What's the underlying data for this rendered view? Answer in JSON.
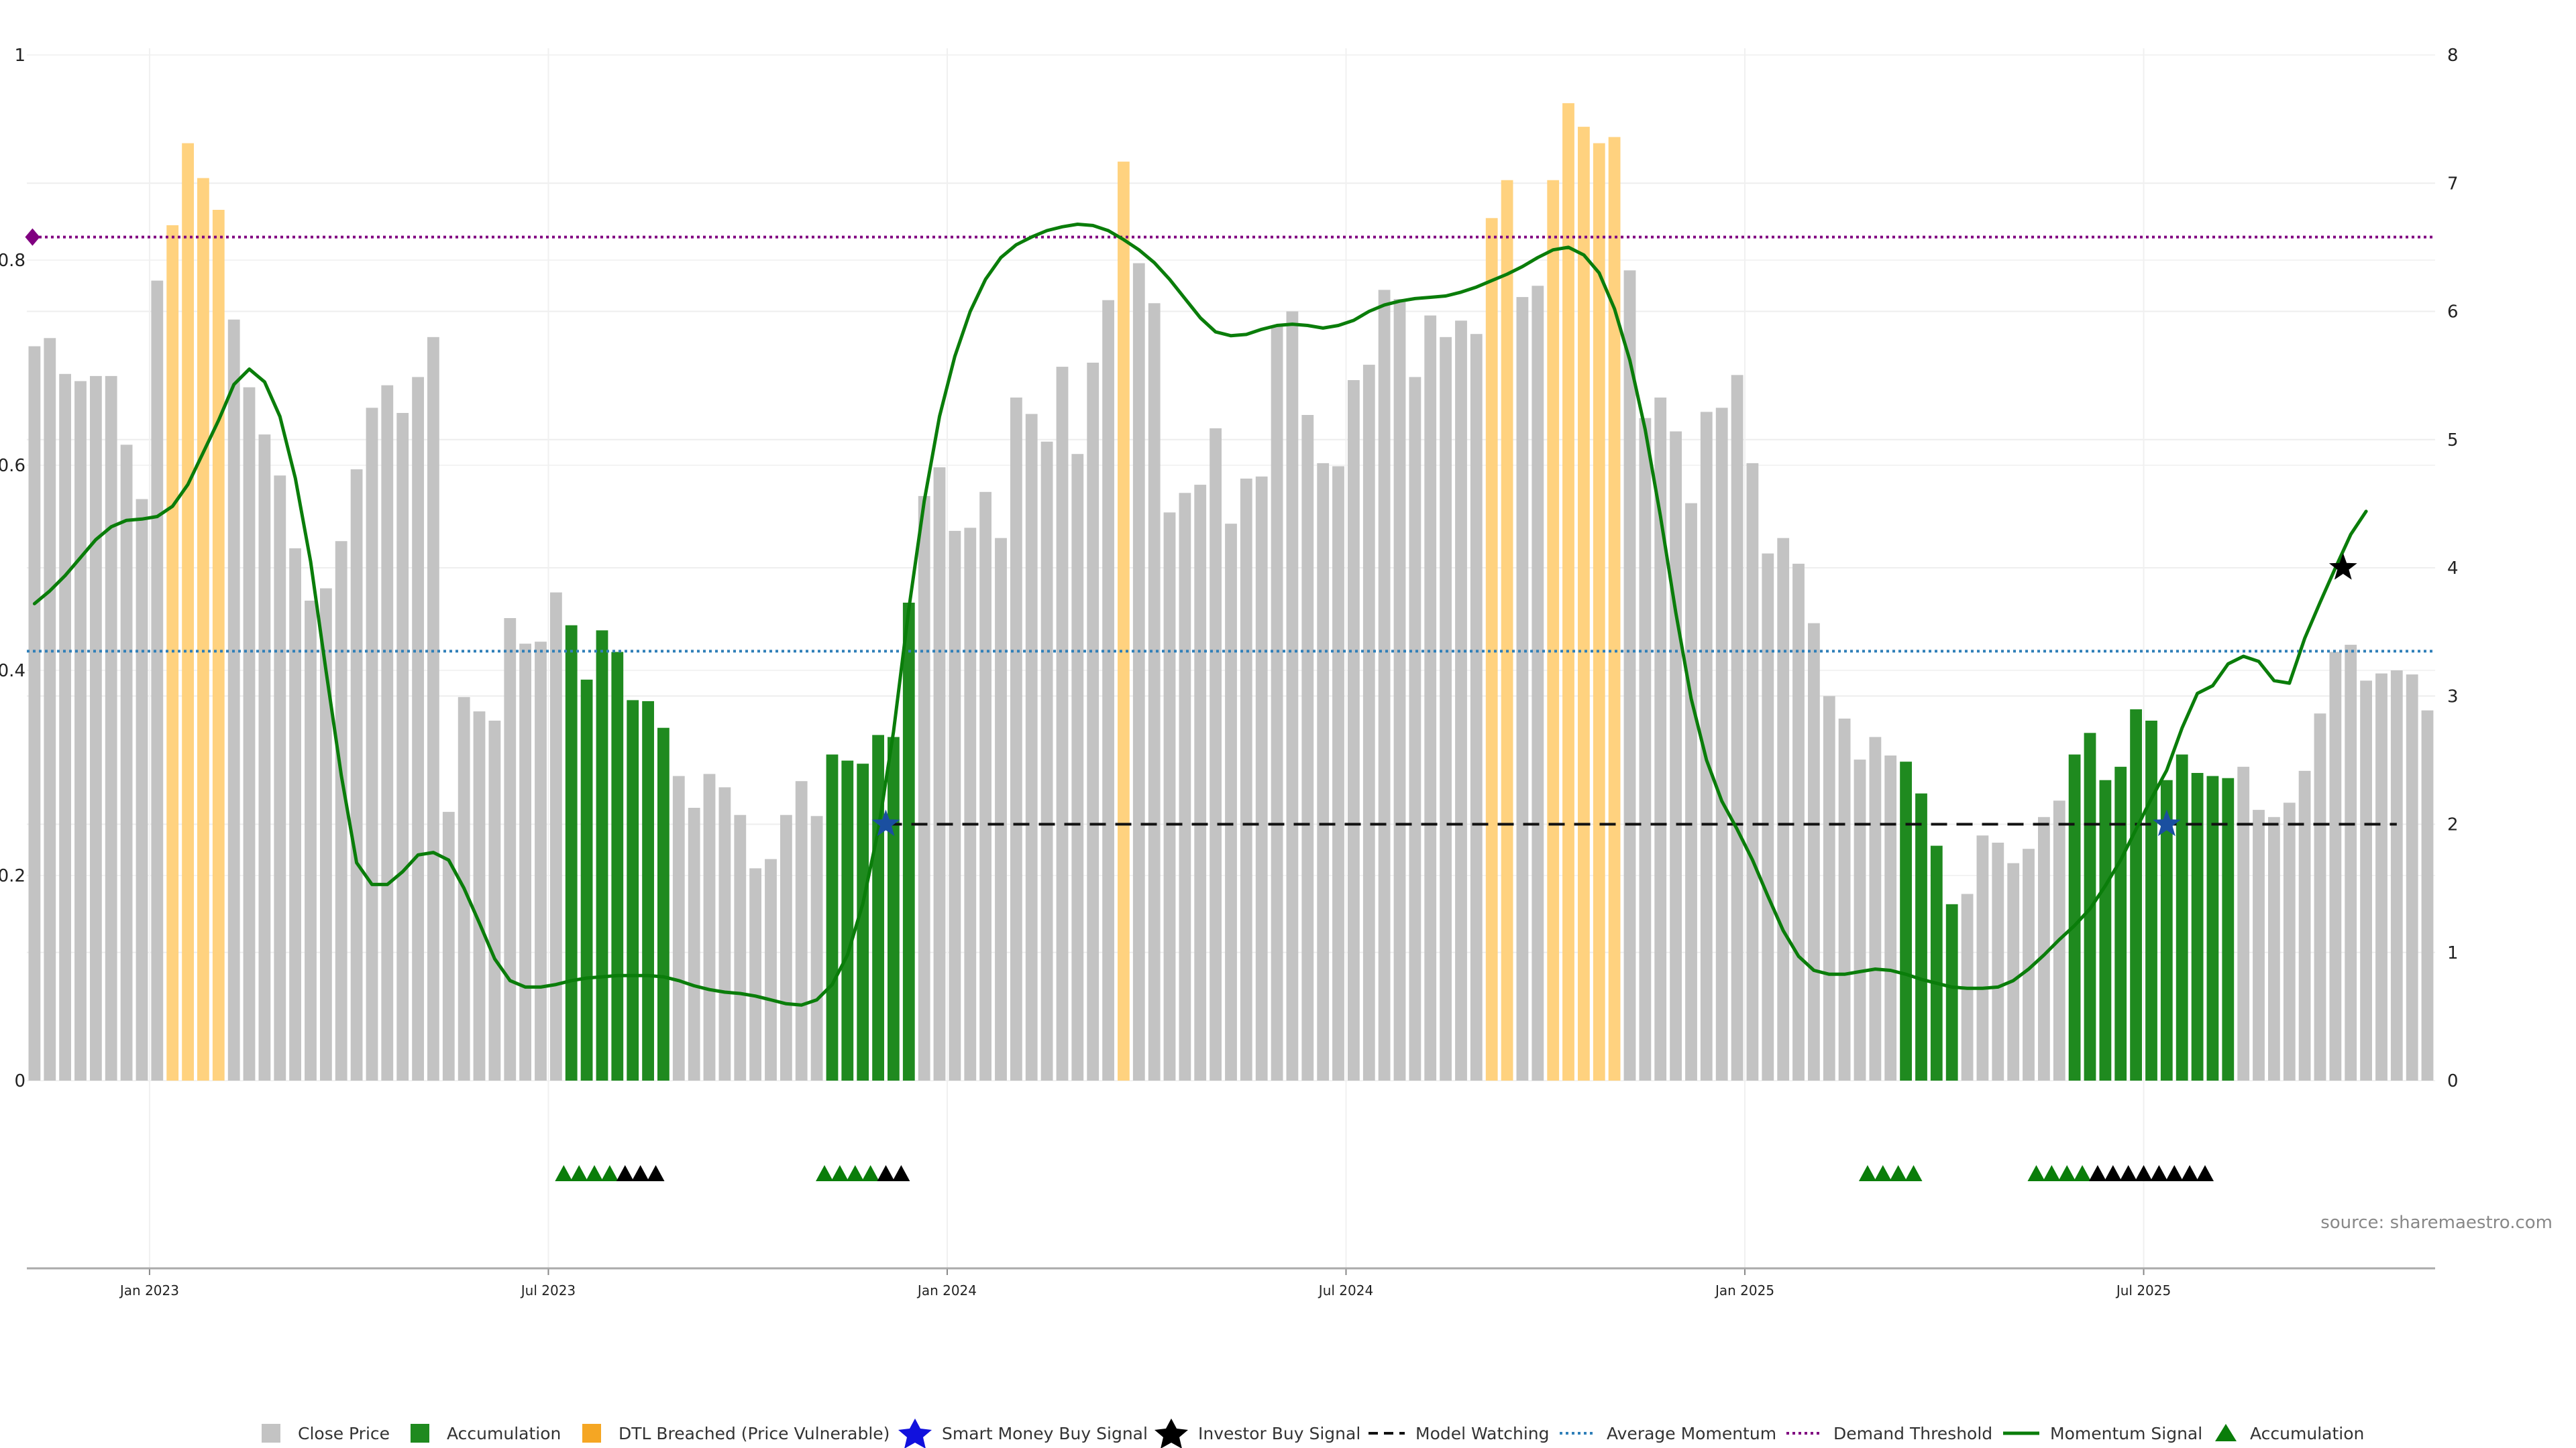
{
  "source_label": "source: sharemaestro.com",
  "colors": {
    "close": "#c3c3c3",
    "accumulation": "#1f8a1f",
    "dtl": "#ffd27f",
    "momentum": "#0a7d0a",
    "average": "#2f7fb8",
    "demand": "#800080",
    "model": "#111111",
    "grid": "#eeeeee"
  },
  "legend": {
    "close": "Close Price",
    "accumulation": "Accumulation",
    "dtl": "DTL Breached (Price Vulnerable)",
    "smart_money": "Smart Money Buy Signal",
    "investor": "Investor Buy Signal",
    "model": "Model Watching",
    "average": "Average Momentum",
    "demand": "Demand Threshold",
    "momentum": "Momentum Signal",
    "accum_marker": "Accumulation"
  },
  "chart_data": {
    "type": "bar",
    "title": "",
    "left_axis": {
      "ylim": [
        0,
        1
      ],
      "ticks": [
        "0",
        "0.2",
        "0.4",
        "0.6",
        "0.8",
        "1"
      ]
    },
    "right_axis": {
      "ylim": [
        0,
        8
      ],
      "ticks": [
        "0",
        "1",
        "2",
        "3",
        "4",
        "5",
        "6",
        "7",
        "8"
      ]
    },
    "x_ticks": [
      {
        "label": "Jan 2023",
        "week": 7.5
      },
      {
        "label": "Jul 2023",
        "week": 33.5
      },
      {
        "label": "Jan 2024",
        "week": 59.5
      },
      {
        "label": "Jul 2024",
        "week": 85.5
      },
      {
        "label": "Jan 2025",
        "week": 111.5
      },
      {
        "label": "Jul 2025",
        "week": 137.5
      }
    ],
    "bars": [
      {
        "v": 0.716,
        "c": "close"
      },
      {
        "v": 0.724,
        "c": "close"
      },
      {
        "v": 0.689,
        "c": "close"
      },
      {
        "v": 0.682,
        "c": "close"
      },
      {
        "v": 0.687,
        "c": "close"
      },
      {
        "v": 0.687,
        "c": "close"
      },
      {
        "v": 0.62,
        "c": "close"
      },
      {
        "v": 0.567,
        "c": "close"
      },
      {
        "v": 0.78,
        "c": "close"
      },
      {
        "v": 0.834,
        "c": "dtl"
      },
      {
        "v": 0.914,
        "c": "dtl"
      },
      {
        "v": 0.88,
        "c": "dtl"
      },
      {
        "v": 0.849,
        "c": "dtl"
      },
      {
        "v": 0.742,
        "c": "close"
      },
      {
        "v": 0.676,
        "c": "close"
      },
      {
        "v": 0.63,
        "c": "close"
      },
      {
        "v": 0.59,
        "c": "close"
      },
      {
        "v": 0.519,
        "c": "close"
      },
      {
        "v": 0.468,
        "c": "close"
      },
      {
        "v": 0.48,
        "c": "close"
      },
      {
        "v": 0.526,
        "c": "close"
      },
      {
        "v": 0.596,
        "c": "close"
      },
      {
        "v": 0.656,
        "c": "close"
      },
      {
        "v": 0.678,
        "c": "close"
      },
      {
        "v": 0.651,
        "c": "close"
      },
      {
        "v": 0.686,
        "c": "close"
      },
      {
        "v": 0.725,
        "c": "close"
      },
      {
        "v": 0.262,
        "c": "close"
      },
      {
        "v": 0.374,
        "c": "close"
      },
      {
        "v": 0.36,
        "c": "close"
      },
      {
        "v": 0.351,
        "c": "close"
      },
      {
        "v": 0.451,
        "c": "close"
      },
      {
        "v": 0.426,
        "c": "close"
      },
      {
        "v": 0.428,
        "c": "close"
      },
      {
        "v": 0.476,
        "c": "close"
      },
      {
        "v": 0.444,
        "c": "acc"
      },
      {
        "v": 0.391,
        "c": "acc"
      },
      {
        "v": 0.439,
        "c": "acc"
      },
      {
        "v": 0.418,
        "c": "acc"
      },
      {
        "v": 0.371,
        "c": "acc"
      },
      {
        "v": 0.37,
        "c": "acc"
      },
      {
        "v": 0.344,
        "c": "acc"
      },
      {
        "v": 0.297,
        "c": "close"
      },
      {
        "v": 0.266,
        "c": "close"
      },
      {
        "v": 0.299,
        "c": "close"
      },
      {
        "v": 0.286,
        "c": "close"
      },
      {
        "v": 0.259,
        "c": "close"
      },
      {
        "v": 0.207,
        "c": "close"
      },
      {
        "v": 0.216,
        "c": "close"
      },
      {
        "v": 0.259,
        "c": "close"
      },
      {
        "v": 0.292,
        "c": "close"
      },
      {
        "v": 0.258,
        "c": "close"
      },
      {
        "v": 0.318,
        "c": "acc"
      },
      {
        "v": 0.312,
        "c": "acc"
      },
      {
        "v": 0.309,
        "c": "acc"
      },
      {
        "v": 0.337,
        "c": "acc"
      },
      {
        "v": 0.335,
        "c": "acc"
      },
      {
        "v": 0.466,
        "c": "acc"
      },
      {
        "v": 0.57,
        "c": "close"
      },
      {
        "v": 0.598,
        "c": "close"
      },
      {
        "v": 0.536,
        "c": "close"
      },
      {
        "v": 0.539,
        "c": "close"
      },
      {
        "v": 0.574,
        "c": "close"
      },
      {
        "v": 0.529,
        "c": "close"
      },
      {
        "v": 0.666,
        "c": "close"
      },
      {
        "v": 0.65,
        "c": "close"
      },
      {
        "v": 0.623,
        "c": "close"
      },
      {
        "v": 0.696,
        "c": "close"
      },
      {
        "v": 0.611,
        "c": "close"
      },
      {
        "v": 0.7,
        "c": "close"
      },
      {
        "v": 0.761,
        "c": "close"
      },
      {
        "v": 0.896,
        "c": "dtl"
      },
      {
        "v": 0.797,
        "c": "close"
      },
      {
        "v": 0.758,
        "c": "close"
      },
      {
        "v": 0.554,
        "c": "close"
      },
      {
        "v": 0.573,
        "c": "close"
      },
      {
        "v": 0.581,
        "c": "close"
      },
      {
        "v": 0.636,
        "c": "close"
      },
      {
        "v": 0.543,
        "c": "close"
      },
      {
        "v": 0.587,
        "c": "close"
      },
      {
        "v": 0.589,
        "c": "close"
      },
      {
        "v": 0.736,
        "c": "close"
      },
      {
        "v": 0.75,
        "c": "close"
      },
      {
        "v": 0.649,
        "c": "close"
      },
      {
        "v": 0.602,
        "c": "close"
      },
      {
        "v": 0.599,
        "c": "close"
      },
      {
        "v": 0.683,
        "c": "close"
      },
      {
        "v": 0.698,
        "c": "close"
      },
      {
        "v": 0.771,
        "c": "close"
      },
      {
        "v": 0.762,
        "c": "close"
      },
      {
        "v": 0.686,
        "c": "close"
      },
      {
        "v": 0.746,
        "c": "close"
      },
      {
        "v": 0.725,
        "c": "close"
      },
      {
        "v": 0.741,
        "c": "close"
      },
      {
        "v": 0.728,
        "c": "close"
      },
      {
        "v": 0.841,
        "c": "dtl"
      },
      {
        "v": 0.878,
        "c": "dtl"
      },
      {
        "v": 0.764,
        "c": "close"
      },
      {
        "v": 0.775,
        "c": "close"
      },
      {
        "v": 0.878,
        "c": "dtl"
      },
      {
        "v": 0.953,
        "c": "dtl"
      },
      {
        "v": 0.93,
        "c": "dtl"
      },
      {
        "v": 0.914,
        "c": "dtl"
      },
      {
        "v": 0.92,
        "c": "dtl"
      },
      {
        "v": 0.79,
        "c": "close"
      },
      {
        "v": 0.646,
        "c": "close"
      },
      {
        "v": 0.666,
        "c": "close"
      },
      {
        "v": 0.633,
        "c": "close"
      },
      {
        "v": 0.563,
        "c": "close"
      },
      {
        "v": 0.652,
        "c": "close"
      },
      {
        "v": 0.656,
        "c": "close"
      },
      {
        "v": 0.688,
        "c": "close"
      },
      {
        "v": 0.602,
        "c": "close"
      },
      {
        "v": 0.514,
        "c": "close"
      },
      {
        "v": 0.529,
        "c": "close"
      },
      {
        "v": 0.504,
        "c": "close"
      },
      {
        "v": 0.446,
        "c": "close"
      },
      {
        "v": 0.375,
        "c": "close"
      },
      {
        "v": 0.353,
        "c": "close"
      },
      {
        "v": 0.313,
        "c": "close"
      },
      {
        "v": 0.335,
        "c": "close"
      },
      {
        "v": 0.317,
        "c": "close"
      },
      {
        "v": 0.311,
        "c": "acc"
      },
      {
        "v": 0.28,
        "c": "acc"
      },
      {
        "v": 0.229,
        "c": "acc"
      },
      {
        "v": 0.172,
        "c": "acc"
      },
      {
        "v": 0.182,
        "c": "close"
      },
      {
        "v": 0.239,
        "c": "close"
      },
      {
        "v": 0.232,
        "c": "close"
      },
      {
        "v": 0.212,
        "c": "close"
      },
      {
        "v": 0.226,
        "c": "close"
      },
      {
        "v": 0.257,
        "c": "close"
      },
      {
        "v": 0.273,
        "c": "close"
      },
      {
        "v": 0.318,
        "c": "acc"
      },
      {
        "v": 0.339,
        "c": "acc"
      },
      {
        "v": 0.293,
        "c": "acc"
      },
      {
        "v": 0.306,
        "c": "acc"
      },
      {
        "v": 0.362,
        "c": "acc"
      },
      {
        "v": 0.351,
        "c": "acc"
      },
      {
        "v": 0.293,
        "c": "acc"
      },
      {
        "v": 0.318,
        "c": "acc"
      },
      {
        "v": 0.3,
        "c": "acc"
      },
      {
        "v": 0.297,
        "c": "acc"
      },
      {
        "v": 0.295,
        "c": "acc"
      },
      {
        "v": 0.306,
        "c": "close"
      },
      {
        "v": 0.264,
        "c": "close"
      },
      {
        "v": 0.257,
        "c": "close"
      },
      {
        "v": 0.271,
        "c": "close"
      },
      {
        "v": 0.302,
        "c": "close"
      },
      {
        "v": 0.358,
        "c": "close"
      },
      {
        "v": 0.418,
        "c": "close"
      },
      {
        "v": 0.425,
        "c": "close"
      },
      {
        "v": 0.39,
        "c": "close"
      },
      {
        "v": 0.397,
        "c": "close"
      },
      {
        "v": 0.4,
        "c": "close"
      },
      {
        "v": 0.396,
        "c": "close"
      },
      {
        "v": 0.361,
        "c": "close"
      }
    ],
    "momentum_series": {
      "name": "Momentum Signal",
      "axis": "right",
      "points": [
        [
          0,
          3.72
        ],
        [
          1,
          3.82
        ],
        [
          2,
          3.94
        ],
        [
          3,
          4.08
        ],
        [
          4,
          4.22
        ],
        [
          5,
          4.32
        ],
        [
          6,
          4.37
        ],
        [
          7,
          4.38
        ],
        [
          8,
          4.4
        ],
        [
          9,
          4.48
        ],
        [
          10,
          4.65
        ],
        [
          11,
          4.9
        ],
        [
          12,
          5.15
        ],
        [
          13,
          5.43
        ],
        [
          14,
          5.55
        ],
        [
          15,
          5.45
        ],
        [
          16,
          5.18
        ],
        [
          17,
          4.7
        ],
        [
          18,
          4.05
        ],
        [
          19,
          3.2
        ],
        [
          20,
          2.38
        ],
        [
          21,
          1.7
        ],
        [
          22,
          1.53
        ],
        [
          23,
          1.53
        ],
        [
          24,
          1.63
        ],
        [
          25,
          1.76
        ],
        [
          26,
          1.78
        ],
        [
          27,
          1.72
        ],
        [
          28,
          1.5
        ],
        [
          29,
          1.23
        ],
        [
          30,
          0.95
        ],
        [
          31,
          0.78
        ],
        [
          32,
          0.73
        ],
        [
          33,
          0.73
        ],
        [
          34,
          0.75
        ],
        [
          35,
          0.78
        ],
        [
          36,
          0.8
        ],
        [
          37,
          0.81
        ],
        [
          38,
          0.82
        ],
        [
          39,
          0.82
        ],
        [
          40,
          0.82
        ],
        [
          41,
          0.81
        ],
        [
          42,
          0.78
        ],
        [
          43,
          0.74
        ],
        [
          44,
          0.71
        ],
        [
          45,
          0.69
        ],
        [
          46,
          0.68
        ],
        [
          47,
          0.66
        ],
        [
          48,
          0.63
        ],
        [
          49,
          0.6
        ],
        [
          50,
          0.59
        ],
        [
          51,
          0.63
        ],
        [
          52,
          0.75
        ],
        [
          53,
          0.98
        ],
        [
          54,
          1.38
        ],
        [
          55,
          1.95
        ],
        [
          56,
          2.72
        ],
        [
          57,
          3.68
        ],
        [
          58,
          4.52
        ],
        [
          59,
          5.18
        ],
        [
          60,
          5.65
        ],
        [
          61,
          6.0
        ],
        [
          62,
          6.25
        ],
        [
          63,
          6.42
        ],
        [
          64,
          6.52
        ],
        [
          65,
          6.58
        ],
        [
          66,
          6.63
        ],
        [
          67,
          6.66
        ],
        [
          68,
          6.68
        ],
        [
          69,
          6.67
        ],
        [
          70,
          6.63
        ],
        [
          71,
          6.56
        ],
        [
          72,
          6.48
        ],
        [
          73,
          6.38
        ],
        [
          74,
          6.25
        ],
        [
          75,
          6.1
        ],
        [
          76,
          5.95
        ],
        [
          77,
          5.84
        ],
        [
          78,
          5.81
        ],
        [
          79,
          5.82
        ],
        [
          80,
          5.86
        ],
        [
          81,
          5.89
        ],
        [
          82,
          5.9
        ],
        [
          83,
          5.89
        ],
        [
          84,
          5.87
        ],
        [
          85,
          5.89
        ],
        [
          86,
          5.93
        ],
        [
          87,
          6.0
        ],
        [
          88,
          6.05
        ],
        [
          89,
          6.08
        ],
        [
          90,
          6.1
        ],
        [
          91,
          6.11
        ],
        [
          92,
          6.12
        ],
        [
          93,
          6.15
        ],
        [
          94,
          6.19
        ],
        [
          95,
          6.24
        ],
        [
          96,
          6.29
        ],
        [
          97,
          6.35
        ],
        [
          98,
          6.42
        ],
        [
          99,
          6.48
        ],
        [
          100,
          6.5
        ],
        [
          101,
          6.44
        ],
        [
          102,
          6.3
        ],
        [
          103,
          6.02
        ],
        [
          104,
          5.62
        ],
        [
          105,
          5.08
        ],
        [
          106,
          4.4
        ],
        [
          107,
          3.65
        ],
        [
          108,
          2.98
        ],
        [
          109,
          2.5
        ],
        [
          110,
          2.18
        ],
        [
          111,
          1.96
        ],
        [
          112,
          1.72
        ],
        [
          113,
          1.44
        ],
        [
          114,
          1.17
        ],
        [
          115,
          0.97
        ],
        [
          116,
          0.86
        ],
        [
          117,
          0.83
        ],
        [
          118,
          0.83
        ],
        [
          119,
          0.85
        ],
        [
          120,
          0.87
        ],
        [
          121,
          0.86
        ],
        [
          122,
          0.83
        ],
        [
          123,
          0.79
        ],
        [
          124,
          0.76
        ],
        [
          125,
          0.73
        ],
        [
          126,
          0.72
        ],
        [
          127,
          0.72
        ],
        [
          128,
          0.73
        ],
        [
          129,
          0.78
        ],
        [
          130,
          0.87
        ],
        [
          131,
          0.98
        ],
        [
          132,
          1.1
        ],
        [
          133,
          1.21
        ],
        [
          134,
          1.34
        ],
        [
          135,
          1.52
        ],
        [
          136,
          1.72
        ],
        [
          137,
          1.96
        ],
        [
          138,
          2.2
        ],
        [
          139,
          2.42
        ],
        [
          140,
          2.75
        ],
        [
          141,
          3.02
        ],
        [
          142,
          3.08
        ],
        [
          143,
          3.25
        ],
        [
          144,
          3.31
        ],
        [
          145,
          3.27
        ],
        [
          146,
          3.12
        ],
        [
          147,
          3.1
        ],
        [
          148,
          3.45
        ],
        [
          149,
          3.73
        ],
        [
          150,
          4.0
        ],
        [
          151,
          4.26
        ],
        [
          152,
          4.44
        ]
      ]
    },
    "average_momentum": 3.35,
    "demand_threshold": 6.58,
    "demand_marker_week": 0,
    "model_watching": {
      "level": 2,
      "from_week": 55.5,
      "to_week": 154
    },
    "smart_money_signals": [
      {
        "week": 55.5,
        "value": 2
      },
      {
        "week": 139,
        "value": 2
      }
    ],
    "investor_signals": [
      {
        "week": 150.5,
        "value": 4
      }
    ],
    "accumulation_markers": [
      {
        "start": 34.5,
        "step": 1,
        "colors": [
          "g",
          "g",
          "g",
          "g",
          "k",
          "k",
          "k"
        ]
      },
      {
        "start": 51.5,
        "step": 1,
        "colors": [
          "g",
          "g",
          "g",
          "g",
          "k",
          "k"
        ]
      },
      {
        "start": 119.5,
        "step": 1,
        "colors": [
          "g",
          "g",
          "g",
          "g"
        ]
      },
      {
        "start": 130.5,
        "step": 1,
        "colors": [
          "g",
          "g",
          "g",
          "g",
          "k",
          "k",
          "k",
          "k",
          "k",
          "k",
          "k",
          "k"
        ]
      }
    ]
  }
}
